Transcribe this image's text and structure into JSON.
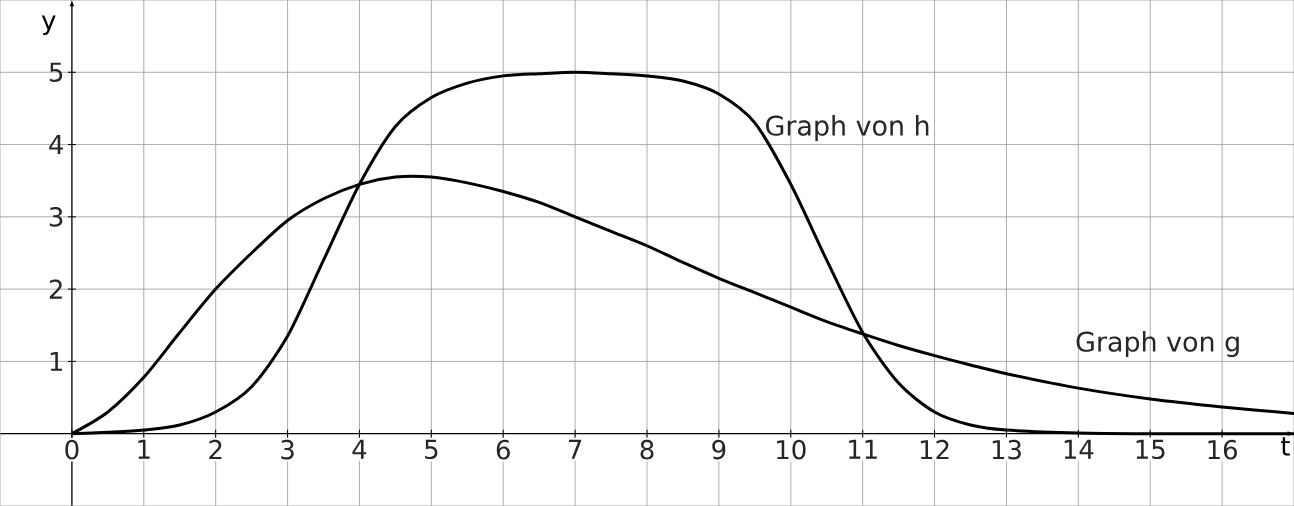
{
  "chart_data": {
    "type": "line",
    "xlabel": "t",
    "ylabel": "y",
    "xlim": [
      -1,
      17
    ],
    "ylim": [
      -1,
      6
    ],
    "xticks": [
      0,
      1,
      2,
      3,
      4,
      5,
      6,
      7,
      8,
      9,
      10,
      11,
      12,
      13,
      14,
      15,
      16
    ],
    "yticks": [
      1,
      2,
      3,
      4,
      5
    ],
    "grid": true,
    "marker": "none",
    "line_style": "solid",
    "x": [
      0,
      0.5,
      1,
      1.5,
      2,
      2.5,
      3,
      3.5,
      4,
      4.5,
      5,
      5.5,
      6,
      6.5,
      7,
      7.5,
      8,
      8.5,
      9,
      9.5,
      10,
      10.5,
      11,
      11.5,
      12,
      12.5,
      13,
      14,
      15,
      16,
      17
    ],
    "series": [
      {
        "color": "#000000",
        "values": [
          0,
          0.3,
          0.78,
          1.4,
          2.0,
          2.5,
          2.95,
          3.25,
          3.45,
          3.55,
          3.55,
          3.47,
          3.35,
          3.2,
          3.0,
          2.8,
          2.6,
          2.37,
          2.15,
          1.95,
          1.75,
          1.55,
          1.38,
          1.22,
          1.08,
          0.95,
          0.83,
          0.63,
          0.48,
          0.37,
          0.28
        ]
      },
      {
        "color": "#000000",
        "values": [
          0,
          0.02,
          0.05,
          0.12,
          0.3,
          0.65,
          1.35,
          2.4,
          3.45,
          4.25,
          4.65,
          4.85,
          4.95,
          4.98,
          5.0,
          4.98,
          4.95,
          4.88,
          4.7,
          4.3,
          3.45,
          2.4,
          1.4,
          0.7,
          0.3,
          0.12,
          0.05,
          0.01,
          0,
          0,
          0
        ]
      }
    ],
    "annotations": [
      "Graph von h",
      "Graph von g"
    ]
  }
}
